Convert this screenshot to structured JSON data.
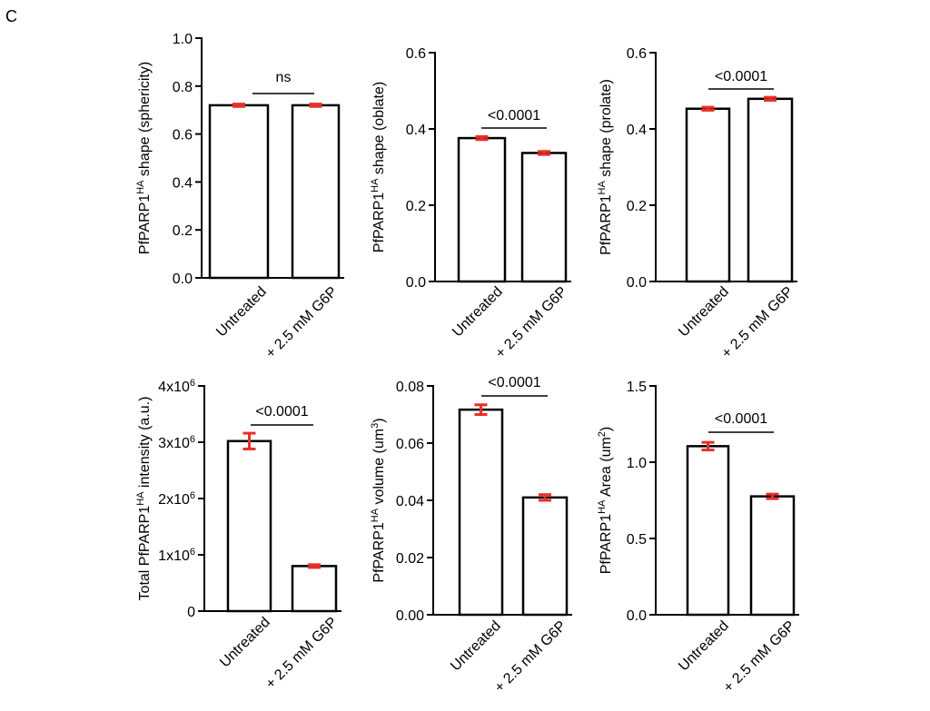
{
  "figure": {
    "panel_label": "C"
  },
  "colors": {
    "bar_fill": "#ffffff",
    "bar_stroke": "#000000",
    "error_bar": "#e8302a",
    "axis": "#000000"
  },
  "chart_data": [
    {
      "type": "bar",
      "ylabel": "PfPARP1HA shape (sphericity)",
      "ylabel_parts": {
        "before": "PfPARP1",
        "sup": "HA",
        "after": " shape (sphericity)"
      },
      "categories": [
        "Untreated",
        "+ 2.5 mM G6P"
      ],
      "values": [
        0.72,
        0.72
      ],
      "errors": [
        0.005,
        0.005
      ],
      "ylim": [
        0,
        1.0
      ],
      "yticks": [
        0.0,
        0.2,
        0.4,
        0.6,
        0.8,
        1.0
      ],
      "ytick_labels": [
        "0.0",
        "0.2",
        "0.4",
        "0.6",
        "0.8",
        "1.0"
      ],
      "significance": "ns",
      "legend": "none",
      "grid": false
    },
    {
      "type": "bar",
      "ylabel": "PfPARP1HA shape (oblate)",
      "ylabel_parts": {
        "before": "PfPARP1",
        "sup": "HA",
        "after": " shape (oblate)"
      },
      "categories": [
        "Untreated",
        "+ 2.5 mM G6P"
      ],
      "values": [
        0.376,
        0.337
      ],
      "errors": [
        0.004,
        0.004
      ],
      "ylim": [
        0,
        0.6
      ],
      "yticks": [
        0.0,
        0.2,
        0.4,
        0.6
      ],
      "ytick_labels": [
        "0.0",
        "0.2",
        "0.4",
        "0.6"
      ],
      "significance": "<0.0001",
      "legend": "none",
      "grid": false
    },
    {
      "type": "bar",
      "ylabel": "PfPARP1HA shape (prolate)",
      "ylabel_parts": {
        "before": "PfPARP1",
        "sup": "HA",
        "after": "  shape (prolate)"
      },
      "categories": [
        "Untreated",
        "+ 2.5 mM G6P"
      ],
      "values": [
        0.453,
        0.479
      ],
      "errors": [
        0.004,
        0.004
      ],
      "ylim": [
        0,
        0.6
      ],
      "yticks": [
        0.0,
        0.2,
        0.4,
        0.6
      ],
      "ytick_labels": [
        "0.0",
        "0.2",
        "0.4",
        "0.6"
      ],
      "significance": "<0.0001",
      "legend": "none",
      "grid": false
    },
    {
      "type": "bar",
      "ylabel": "Total PfPARP1HA intensity (a.u.)",
      "ylabel_parts": {
        "before": "Total PfPARP1",
        "sup": "HA",
        "after": " intensity (a.u.)"
      },
      "categories": [
        "Untreated",
        "+ 2.5 mM G6P"
      ],
      "values": [
        3020000,
        800000
      ],
      "errors": [
        140000,
        25000
      ],
      "ylim": [
        0,
        4000000
      ],
      "yticks": [
        0,
        1000000,
        2000000,
        3000000,
        4000000
      ],
      "ytick_labels": [
        "0",
        "1x10^6",
        "2x10^6",
        "3x10^6",
        "4x10^6"
      ],
      "significance": "<0.0001",
      "legend": "none",
      "grid": false
    },
    {
      "type": "bar",
      "ylabel": "PfPARP1HA volume (um3)",
      "ylabel_parts": {
        "before": "PfPARP1",
        "sup": "HA",
        "after": " volume (um",
        "sup2": "3",
        "after2": ")"
      },
      "categories": [
        "Untreated",
        "+ 2.5 mM G6P"
      ],
      "values": [
        0.0717,
        0.041
      ],
      "errors": [
        0.0017,
        0.001
      ],
      "ylim": [
        0,
        0.08
      ],
      "yticks": [
        0.0,
        0.02,
        0.04,
        0.06,
        0.08
      ],
      "ytick_labels": [
        "0.00",
        "0.02",
        "0.04",
        "0.06",
        "0.08"
      ],
      "significance": "<0.0001",
      "legend": "none",
      "grid": false
    },
    {
      "type": "bar",
      "ylabel": "PfPARP1HA Area (um2)",
      "ylabel_parts": {
        "before": "PfPARP1",
        "sup": "HA",
        "after": " Area (um",
        "sup2": "2",
        "after2": ")"
      },
      "categories": [
        "Untreated",
        "+ 2.5 mM G6P"
      ],
      "values": [
        1.105,
        0.776
      ],
      "errors": [
        0.025,
        0.015
      ],
      "ylim": [
        0,
        1.5
      ],
      "yticks": [
        0.0,
        0.5,
        1.0,
        1.5
      ],
      "ytick_labels": [
        "0.0",
        "0.5",
        "1.0",
        "1.5"
      ],
      "significance": "<0.0001",
      "legend": "none",
      "grid": false
    }
  ]
}
